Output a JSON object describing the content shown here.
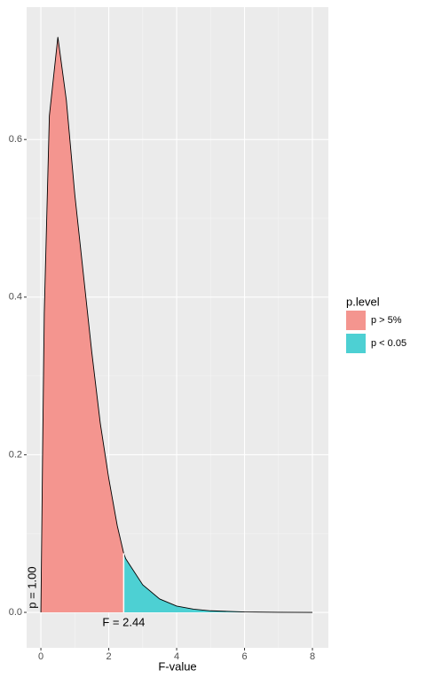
{
  "chart_data": {
    "type": "area",
    "x_label": "F-value",
    "legend_title": "p.level",
    "annotations": [
      "F = 2.44",
      "p = 1.00"
    ],
    "series": [
      {
        "name": "p > 5%",
        "color": "#F4958F",
        "x": [
          0,
          0.05,
          0.1,
          0.25,
          0.5,
          0.75,
          1,
          1.25,
          1.5,
          1.75,
          2,
          2.25,
          2.44
        ],
        "values": [
          0,
          0.2,
          0.38,
          0.63,
          0.73,
          0.65,
          0.53,
          0.43,
          0.33,
          0.24,
          0.17,
          0.11,
          0.075
        ]
      },
      {
        "name": "p < 0.05",
        "color": "#4DD0D3",
        "x": [
          2.44,
          2.5,
          3,
          3.5,
          4,
          4.5,
          5,
          6,
          7,
          8
        ],
        "values": [
          0.075,
          0.068,
          0.035,
          0.017,
          0.008,
          0.004,
          0.002,
          0.0005,
          0.0001,
          0
        ]
      }
    ],
    "xlim": [
      -0.42,
      8.47
    ],
    "ylim": [
      -0.045,
      0.768
    ],
    "xticks": [
      0,
      2,
      4,
      6,
      8
    ],
    "yticks": [
      {
        "value": 0,
        "label": "0.0"
      },
      0.2,
      0.4,
      0.6
    ],
    "grid": true,
    "legend": "right"
  }
}
